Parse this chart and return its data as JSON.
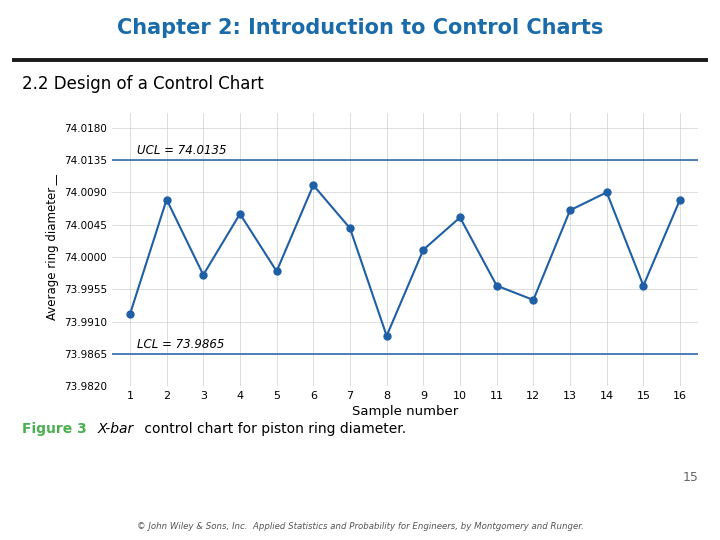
{
  "title": "Chapter 2: Introduction to Control Charts",
  "subtitle": "2.2 Design of a Control Chart",
  "figure_label": "Figure 3",
  "figure_caption_italic": "X-bar",
  "figure_caption_rest": " control chart for piston ring diameter.",
  "footer": "© John Wiley & Sons, Inc.  Applied Statistics and Probability for Engineers, by Montgomery and Runger.",
  "page_number": "15",
  "xlabel": "Sample number",
  "ylabel": "Average ring diameter  ͟",
  "UCL": 74.0135,
  "LCL": 73.9865,
  "UCL_label": "UCL = 74.0135",
  "LCL_label": "LCL = 73.9865",
  "x": [
    1,
    2,
    3,
    4,
    5,
    6,
    7,
    8,
    9,
    10,
    11,
    12,
    13,
    14,
    15,
    16
  ],
  "y": [
    73.992,
    74.008,
    73.9975,
    74.006,
    73.998,
    74.01,
    74.004,
    73.989,
    74.001,
    74.0055,
    73.996,
    73.994,
    74.0065,
    74.009,
    73.996,
    74.008
  ],
  "line_color": "#1f5fa6",
  "title_color": "#1a6baa",
  "subtitle_color": "#000000",
  "figure_label_color": "#4caf50",
  "ylim_min": 73.982,
  "ylim_max": 74.02,
  "yticks": [
    73.982,
    73.9865,
    73.991,
    73.9955,
    74.0,
    74.0045,
    74.009,
    74.0135,
    74.018
  ],
  "background_color": "#ffffff"
}
